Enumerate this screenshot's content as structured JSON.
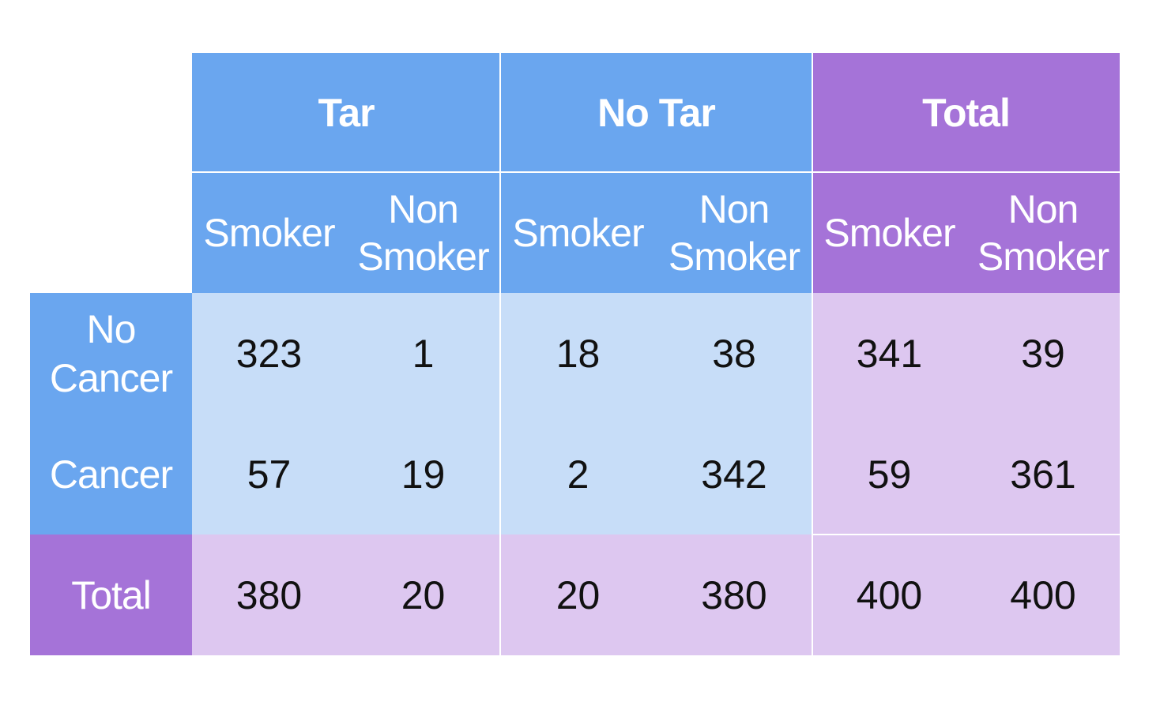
{
  "chart_data": {
    "type": "table",
    "column_groups": [
      {
        "label": "Tar",
        "columns": [
          "Smoker",
          "Non\nSmoker"
        ]
      },
      {
        "label": "No Tar",
        "columns": [
          "Smoker",
          "Non\nSmoker"
        ]
      },
      {
        "label": "Total",
        "columns": [
          "Smoker",
          "Non\nSmoker"
        ]
      }
    ],
    "rows": [
      {
        "label": "No\nCancer",
        "values": [
          "323",
          "1",
          "18",
          "38",
          "341",
          "39"
        ]
      },
      {
        "label": "Cancer",
        "values": [
          "57",
          "19",
          "2",
          "342",
          "59",
          "361"
        ]
      },
      {
        "label": "Total",
        "values": [
          "380",
          "20",
          "20",
          "380",
          "400",
          "400"
        ]
      }
    ],
    "colors": {
      "header_blue": "#6aa6ef",
      "header_purple": "#a573d8",
      "body_blue": "#c7ddf8",
      "body_purple": "#ddc7f0"
    }
  }
}
